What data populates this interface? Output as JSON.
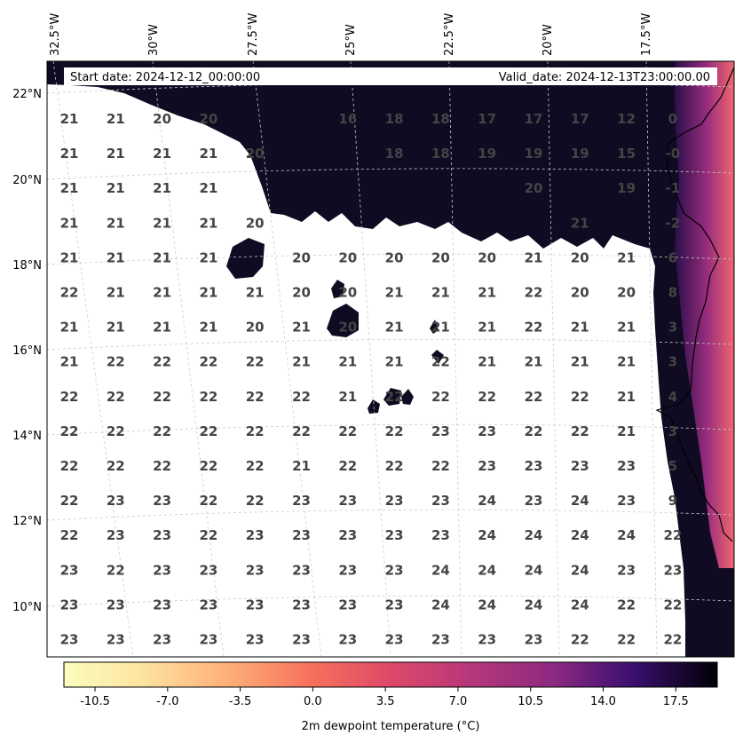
{
  "header": {
    "start_date": "Start date: 2024-12-12_00:00:00",
    "valid_date": "Valid_date: 2024-12-13T23:00:00.00"
  },
  "axes": {
    "lon_labels": [
      "32.5°W",
      "30°W",
      "27.5°W",
      "25°W",
      "22.5°W",
      "20°W",
      "17.5°W"
    ],
    "lat_labels": [
      "22°N",
      "20°N",
      "18°N",
      "16°N",
      "14°N",
      "12°N",
      "10°N"
    ]
  },
  "colorbar": {
    "label": "2m dewpoint temperature ($^\\circ$C)",
    "display_label": "2m dewpoint temperature (°C)",
    "ticks": [
      "-10.5",
      "-7.0",
      "-3.5",
      "0.0",
      "3.5",
      "7.0",
      "10.5",
      "14.0",
      "17.5"
    ],
    "colormap": "magma_r",
    "range": [
      -12.0,
      19.5
    ]
  },
  "grid_values": [
    [
      "21",
      "21",
      "20",
      "20",
      "",
      "",
      "16",
      "18",
      "18",
      "17",
      "17",
      "17",
      "12",
      "0"
    ],
    [
      "21",
      "21",
      "21",
      "21",
      "20",
      "",
      "",
      "18",
      "18",
      "19",
      "19",
      "19",
      "15",
      "-0"
    ],
    [
      "21",
      "21",
      "21",
      "21",
      "",
      "",
      "",
      "",
      "",
      "",
      "20",
      "",
      "19",
      "-1"
    ],
    [
      "21",
      "21",
      "21",
      "21",
      "20",
      "",
      "",
      "",
      "",
      "",
      "",
      "21",
      "",
      "-2"
    ],
    [
      "21",
      "21",
      "21",
      "21",
      "",
      "20",
      "20",
      "20",
      "20",
      "20",
      "21",
      "20",
      "21",
      "6"
    ],
    [
      "22",
      "21",
      "21",
      "21",
      "21",
      "20",
      "20",
      "21",
      "21",
      "21",
      "22",
      "20",
      "20",
      "8"
    ],
    [
      "21",
      "21",
      "21",
      "21",
      "20",
      "21",
      "20",
      "21",
      "21",
      "21",
      "22",
      "21",
      "21",
      "3"
    ],
    [
      "21",
      "22",
      "22",
      "22",
      "22",
      "21",
      "21",
      "21",
      "22",
      "21",
      "21",
      "21",
      "21",
      "3"
    ],
    [
      "22",
      "22",
      "22",
      "22",
      "22",
      "22",
      "21",
      "22",
      "22",
      "22",
      "22",
      "22",
      "21",
      "4"
    ],
    [
      "22",
      "22",
      "22",
      "22",
      "22",
      "22",
      "22",
      "22",
      "23",
      "23",
      "22",
      "22",
      "21",
      "3"
    ],
    [
      "22",
      "22",
      "22",
      "22",
      "22",
      "21",
      "22",
      "22",
      "22",
      "23",
      "23",
      "23",
      "23",
      "5"
    ],
    [
      "22",
      "23",
      "23",
      "22",
      "22",
      "23",
      "23",
      "23",
      "23",
      "24",
      "23",
      "24",
      "23",
      "9"
    ],
    [
      "22",
      "23",
      "23",
      "22",
      "23",
      "23",
      "23",
      "23",
      "23",
      "24",
      "24",
      "24",
      "24",
      "22"
    ],
    [
      "23",
      "22",
      "23",
      "23",
      "23",
      "23",
      "23",
      "23",
      "24",
      "24",
      "24",
      "24",
      "23",
      "23"
    ],
    [
      "23",
      "23",
      "23",
      "23",
      "23",
      "23",
      "23",
      "23",
      "24",
      "24",
      "24",
      "24",
      "22",
      "22"
    ],
    [
      "23",
      "23",
      "23",
      "23",
      "23",
      "23",
      "23",
      "23",
      "23",
      "23",
      "23",
      "22",
      "22",
      "22"
    ]
  ],
  "colors": {
    "dark_field": "#100b22",
    "coast_warm": "#e8616c",
    "grid_text": "#444444",
    "gridline": "#cccccc"
  }
}
